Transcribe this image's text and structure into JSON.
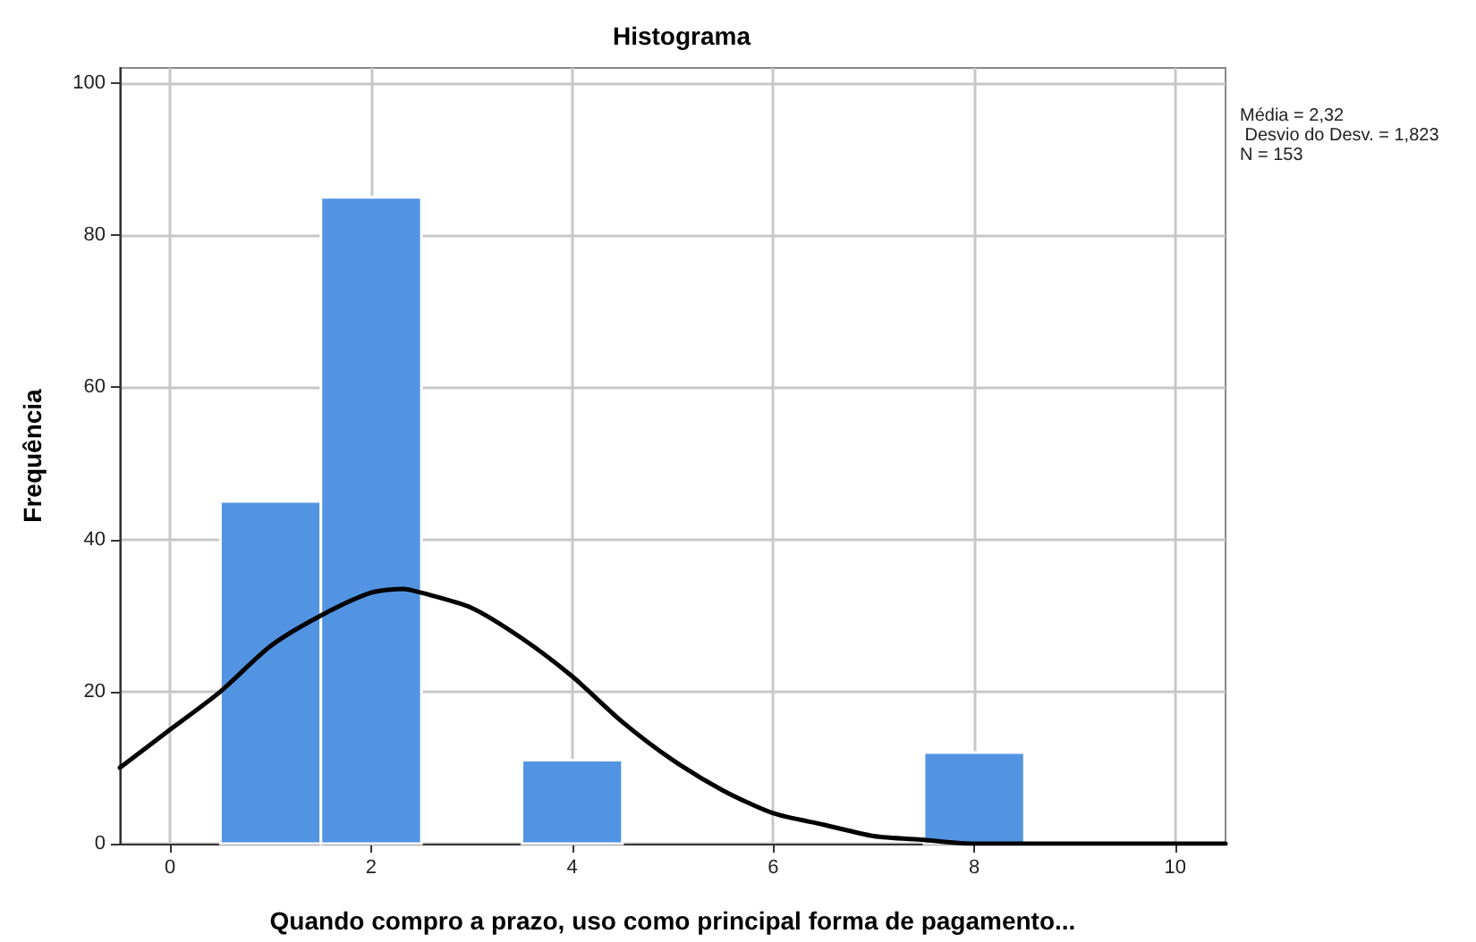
{
  "chart_data": {
    "type": "histogram",
    "title": "Histograma",
    "xlabel": "Quando compro a prazo, uso como principal forma de pagamento...",
    "ylabel": "Frequência",
    "bins": [
      0.5,
      1.5,
      2.5,
      3.5,
      4.5,
      5.5,
      6.5,
      7.5,
      8.5
    ],
    "series": [
      {
        "color": "#5294e2",
        "values": [
          45,
          85,
          0,
          11,
          0,
          0,
          0,
          12
        ]
      },
      {
        "type": "line",
        "color": "#000000",
        "x": [
          -0.5,
          0,
          0.5,
          1,
          1.5,
          2,
          2.32,
          2.5,
          3,
          3.5,
          4,
          4.5,
          5,
          5.5,
          6,
          6.5,
          7,
          7.5,
          8,
          9,
          10,
          10.5
        ],
        "values": [
          10,
          15,
          20,
          26,
          30,
          33,
          33.5,
          33,
          31,
          27,
          22,
          16,
          11,
          7,
          4,
          2.5,
          1,
          0.5,
          0,
          0,
          0,
          0
        ]
      }
    ],
    "xlim": [
      -0.5,
      10.5
    ],
    "xticks": [
      0,
      2,
      4,
      6,
      8,
      10
    ],
    "ylim": [
      0,
      102
    ],
    "yticks": [
      0,
      20,
      40,
      60,
      80,
      100
    ],
    "grid": true,
    "marker": "none",
    "line_style": "solid",
    "annotations": [
      "Média = 2,32",
      " Desvio do Desv. = 1,823",
      "N = 153"
    ]
  }
}
